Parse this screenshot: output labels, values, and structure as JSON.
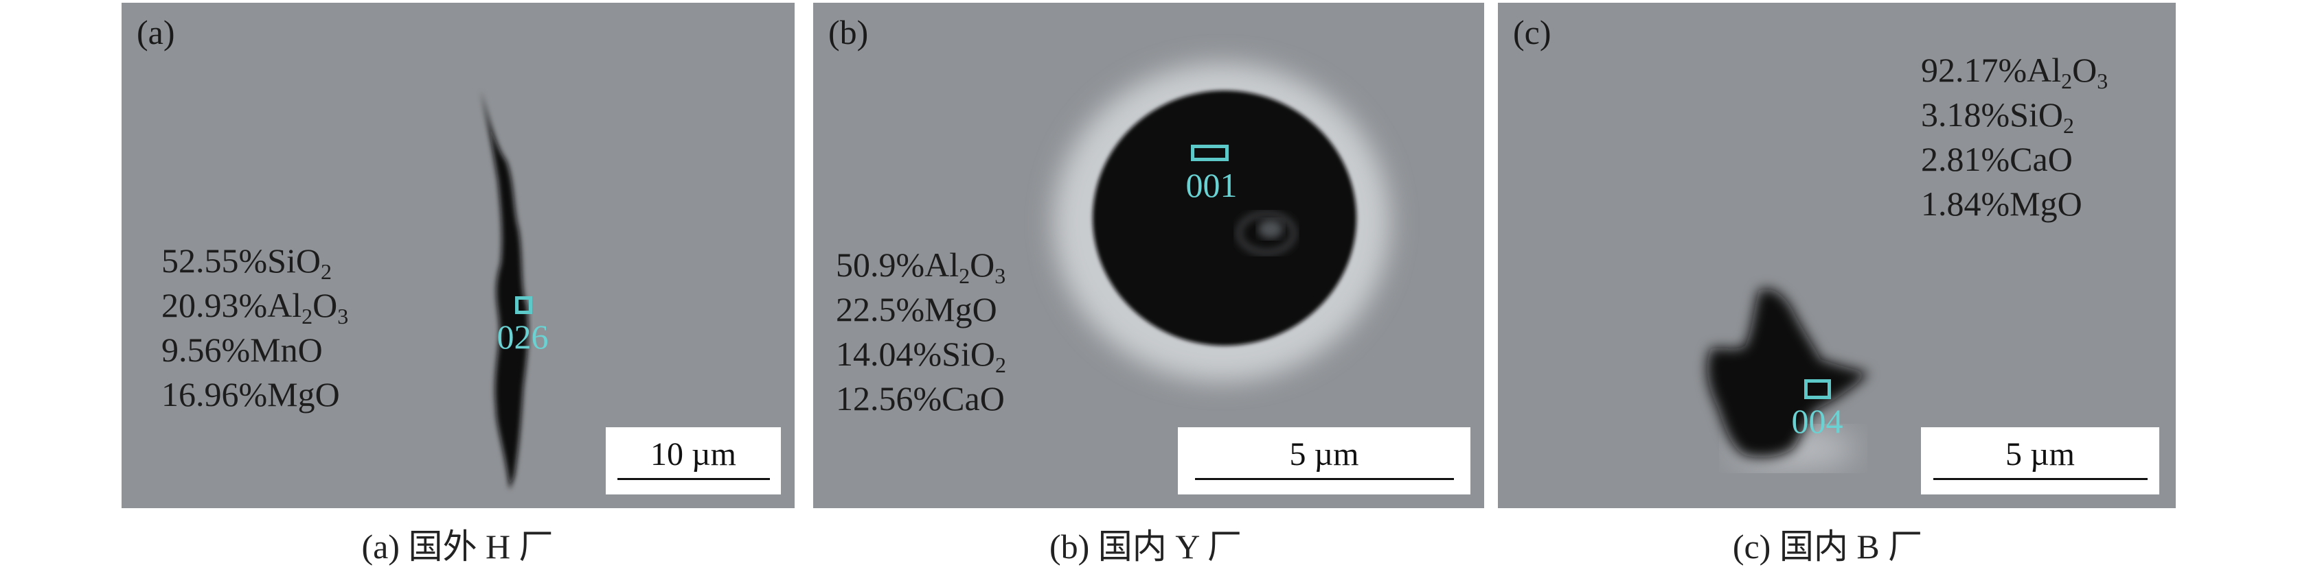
{
  "panels": [
    {
      "label": "(a)",
      "caption": "(a) 国外 H 厂",
      "spot_id": "026",
      "scale_bar": "10 µm",
      "composition": [
        [
          {
            "t": "52.55%SiO"
          },
          {
            "sub": "2"
          }
        ],
        [
          {
            "t": "20.93%Al"
          },
          {
            "sub": "2"
          },
          {
            "t": "O"
          },
          {
            "sub": "3"
          }
        ],
        [
          {
            "t": "9.56%MnO"
          }
        ],
        [
          {
            "t": "16.96%MgO"
          }
        ]
      ]
    },
    {
      "label": "(b)",
      "caption": "(b) 国内 Y 厂",
      "spot_id": "001",
      "scale_bar": "5 µm",
      "composition": [
        [
          {
            "t": "50.9%Al"
          },
          {
            "sub": "2"
          },
          {
            "t": "O"
          },
          {
            "sub": "3"
          }
        ],
        [
          {
            "t": "22.5%MgO"
          }
        ],
        [
          {
            "t": "14.04%SiO"
          },
          {
            "sub": "2"
          }
        ],
        [
          {
            "t": "12.56%CaO"
          }
        ]
      ]
    },
    {
      "label": "(c)",
      "caption": "(c) 国内 B 厂",
      "spot_id": "004",
      "scale_bar": "5 µm",
      "composition": [
        [
          {
            "t": "92.17%Al"
          },
          {
            "sub": "2"
          },
          {
            "t": "O"
          },
          {
            "sub": "3"
          }
        ],
        [
          {
            "t": "3.18%SiO"
          },
          {
            "sub": "2"
          }
        ],
        [
          {
            "t": "2.81%CaO"
          }
        ],
        [
          {
            "t": "1.84%MgO"
          }
        ]
      ]
    }
  ],
  "colors": {
    "background": "#8f9296",
    "inclusion": "#0b0b0d",
    "spot_marker": "#5ec9c9"
  }
}
